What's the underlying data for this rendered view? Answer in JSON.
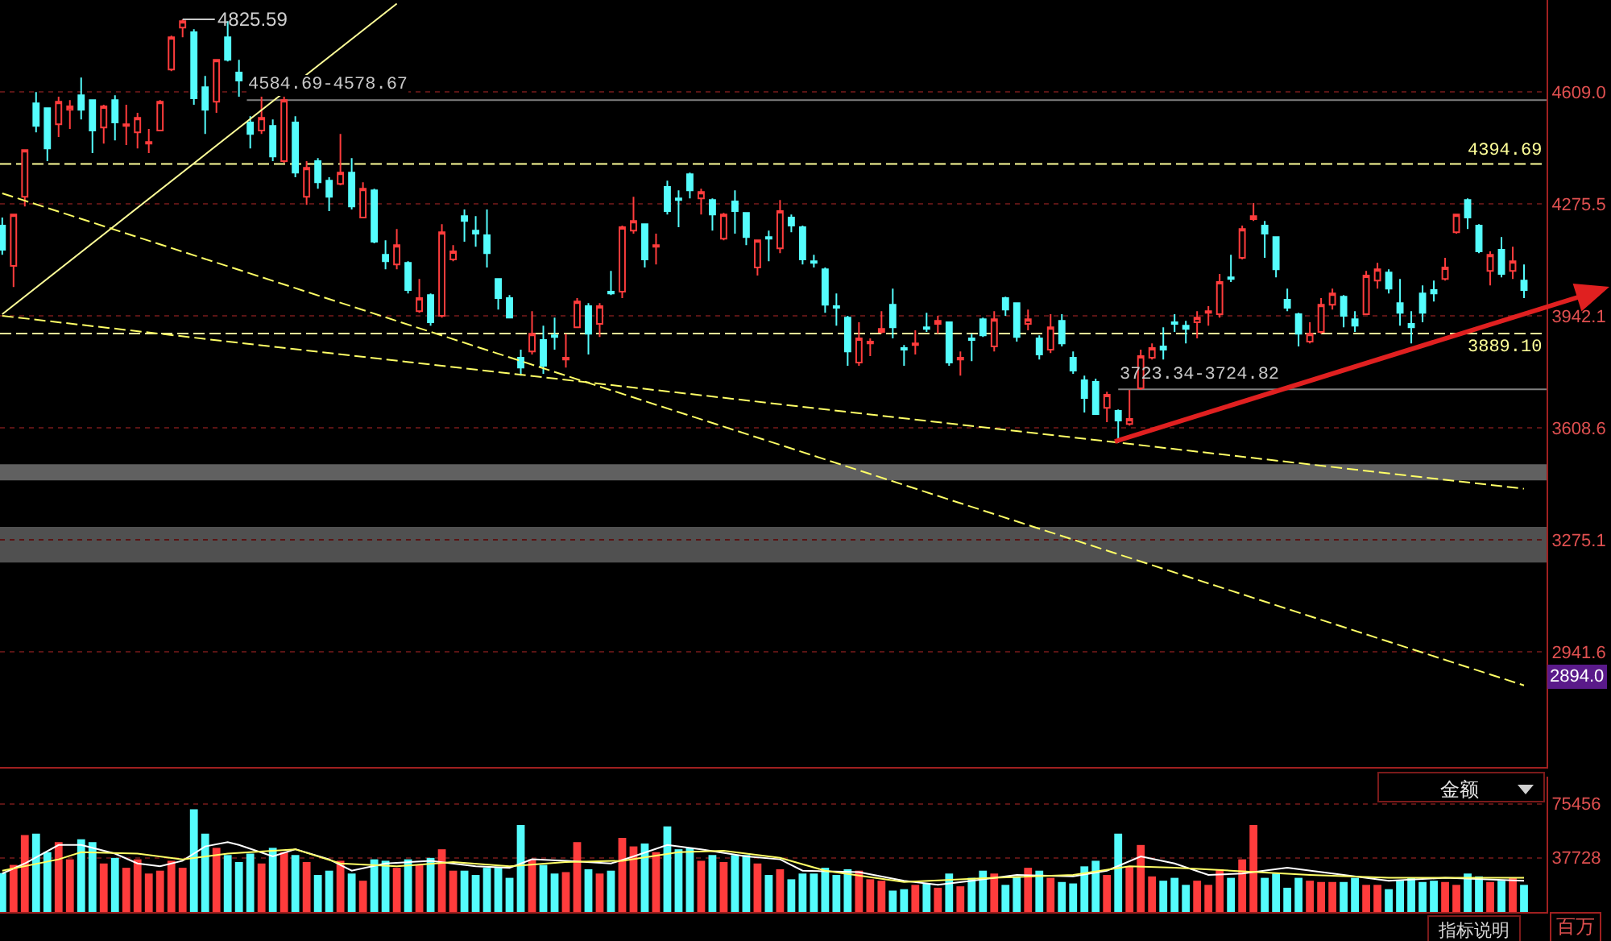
{
  "chart_data": [
    {
      "type": "candlestick",
      "categories": [
        null,
        null,
        null,
        null,
        null,
        null,
        null,
        null,
        null,
        null,
        null,
        null,
        null,
        null,
        null,
        null,
        null,
        null,
        null,
        null,
        null,
        null,
        null,
        null,
        null,
        null,
        null,
        null,
        null,
        null,
        null,
        null,
        null,
        null,
        null,
        null,
        null,
        null,
        null,
        null,
        null,
        null,
        null,
        null,
        null,
        null,
        null,
        null,
        null,
        null,
        null,
        null,
        null,
        null,
        null,
        null,
        null,
        null,
        null,
        null,
        null,
        null,
        null,
        null,
        null,
        null,
        null,
        null,
        null,
        null,
        null,
        null,
        null,
        null,
        null,
        null,
        null,
        null,
        null,
        null,
        null,
        null,
        null,
        null,
        null,
        null,
        null,
        null,
        null,
        null,
        null,
        null,
        null,
        null,
        null,
        null,
        null,
        null,
        null,
        null,
        null,
        null,
        null,
        null,
        null,
        null,
        null,
        null,
        null,
        null,
        null,
        null,
        null,
        null,
        null,
        null,
        null,
        null,
        null,
        null,
        null,
        null,
        null,
        null,
        null,
        null,
        null,
        null,
        null,
        null,
        null,
        null,
        null,
        null,
        null,
        null
      ],
      "ohlc": [
        [
          4211,
          4235,
          4124,
          4139
        ],
        [
          4091,
          4244,
          4028,
          4244
        ],
        [
          4297,
          4436,
          4268,
          4436
        ],
        [
          4575,
          4609,
          4489,
          4508
        ],
        [
          4561,
          4561,
          4403,
          4441
        ],
        [
          4513,
          4595,
          4475,
          4580
        ],
        [
          4556,
          4585,
          4499,
          4566
        ],
        [
          4599,
          4652,
          4527,
          4556
        ],
        [
          4585,
          4585,
          4427,
          4494
        ],
        [
          4503,
          4571,
          4455,
          4566
        ],
        [
          4585,
          4599,
          4465,
          4518
        ],
        [
          4508,
          4571,
          4451,
          4513
        ],
        [
          4489,
          4547,
          4441,
          4532
        ],
        [
          4455,
          4499,
          4427,
          4460
        ],
        [
          4494,
          4585,
          4494,
          4580
        ],
        [
          4676,
          4777,
          4671,
          4772
        ],
        [
          4801,
          4825.59,
          4772,
          4820
        ],
        [
          4787,
          4796,
          4571,
          4590
        ],
        [
          4623,
          4657,
          4484,
          4556
        ],
        [
          4580,
          4705,
          4547,
          4705
        ],
        [
          4772,
          4820,
          4700,
          4705
        ],
        [
          4667,
          4705,
          4595,
          4643
        ],
        [
          4518,
          4537,
          4441,
          4484
        ],
        [
          4494,
          4595,
          4484,
          4532
        ],
        [
          4508,
          4527,
          4403,
          4417
        ],
        [
          4403,
          4595,
          4398,
          4585
        ],
        [
          4518,
          4537,
          4355,
          4369
        ],
        [
          4297,
          4403,
          4273,
          4383
        ],
        [
          4403,
          4412,
          4321,
          4340
        ],
        [
          4345,
          4355,
          4254,
          4297
        ],
        [
          4335,
          4484,
          4331,
          4369
        ],
        [
          4369,
          4412,
          4259,
          4268
        ],
        [
          4235,
          4340,
          4235,
          4321
        ],
        [
          4316,
          4321,
          4158,
          4163
        ],
        [
          4124,
          4167,
          4081,
          4105
        ],
        [
          4095,
          4201,
          4081,
          4153
        ],
        [
          4100,
          4105,
          4009,
          4019
        ],
        [
          3956,
          4052,
          3951,
          3995
        ],
        [
          4004,
          4009,
          3913,
          3923
        ],
        [
          3942,
          4215,
          3937,
          4191
        ],
        [
          4110,
          4153,
          4105,
          4134
        ],
        [
          4239,
          4259,
          4163,
          4225
        ],
        [
          4196,
          4239,
          4148,
          4187
        ],
        [
          4182,
          4259,
          4086,
          4129
        ],
        [
          4052,
          4052,
          3961,
          3995
        ],
        [
          3995,
          4004,
          3937,
          3937
        ],
        [
          3817,
          3841,
          3764,
          3788
        ],
        [
          3836,
          3956,
          3827,
          3889
        ],
        [
          3870,
          3913,
          3769,
          3793
        ],
        [
          3884,
          3937,
          3841,
          3879
        ],
        [
          3812,
          3889,
          3788,
          3817
        ],
        [
          3908,
          3995,
          3908,
          3985
        ],
        [
          3971,
          3980,
          3827,
          3889
        ],
        [
          3918,
          3980,
          3879,
          3971
        ],
        [
          4014,
          4076,
          4004,
          4009
        ],
        [
          4014,
          4211,
          3995,
          4206
        ],
        [
          4196,
          4297,
          4187,
          4225
        ],
        [
          4215,
          4215,
          4086,
          4110
        ],
        [
          4148,
          4187,
          4095,
          4153
        ],
        [
          4326,
          4345,
          4244,
          4254
        ],
        [
          4292,
          4316,
          4206,
          4287
        ],
        [
          4364,
          4369,
          4292,
          4316
        ],
        [
          4292,
          4321,
          4244,
          4311
        ],
        [
          4287,
          4292,
          4196,
          4244
        ],
        [
          4172,
          4249,
          4167,
          4244
        ],
        [
          4283,
          4316,
          4187,
          4254
        ],
        [
          4249,
          4249,
          4153,
          4177
        ],
        [
          4086,
          4167,
          4062,
          4167
        ],
        [
          4177,
          4196,
          4105,
          4172
        ],
        [
          4143,
          4287,
          4129,
          4254
        ],
        [
          4235,
          4244,
          4191,
          4211
        ],
        [
          4206,
          4211,
          4095,
          4110
        ],
        [
          4105,
          4124,
          4086,
          4100
        ],
        [
          4081,
          4086,
          3951,
          3975
        ],
        [
          3971,
          4009,
          3913,
          3966
        ],
        [
          3937,
          3942,
          3793,
          3836
        ],
        [
          3803,
          3923,
          3793,
          3875
        ],
        [
          3860,
          3875,
          3822,
          3865
        ],
        [
          3894,
          3956,
          3889,
          3903
        ],
        [
          3975,
          4023,
          3875,
          3908
        ],
        [
          3846,
          3855,
          3793,
          3841
        ],
        [
          3855,
          3899,
          3827,
          3860
        ],
        [
          3908,
          3951,
          3894,
          3903
        ],
        [
          3918,
          3942,
          3889,
          3927
        ],
        [
          3923,
          3923,
          3793,
          3803
        ],
        [
          3812,
          3836,
          3764,
          3817
        ],
        [
          3875,
          3889,
          3807,
          3870
        ],
        [
          3932,
          3937,
          3879,
          3884
        ],
        [
          3851,
          3956,
          3836,
          3932
        ],
        [
          3995,
          3999,
          3942,
          3961
        ],
        [
          3980,
          3980,
          3865,
          3879
        ],
        [
          3918,
          3961,
          3899,
          3932
        ],
        [
          3875,
          3884,
          3812,
          3827
        ],
        [
          3841,
          3947,
          3831,
          3908
        ],
        [
          3927,
          3947,
          3851,
          3860
        ],
        [
          3817,
          3836,
          3769,
          3779
        ],
        [
          3750,
          3764,
          3654,
          3697
        ],
        [
          3745,
          3755,
          3649,
          3649
        ],
        [
          3668,
          3716,
          3625,
          3707
        ],
        [
          3659,
          3663,
          3563,
          3630
        ],
        [
          3620,
          3721,
          3615,
          3635
        ],
        [
          3726,
          3841,
          3721,
          3822
        ],
        [
          3817,
          3860,
          3812,
          3846
        ],
        [
          3851,
          3908,
          3812,
          3841
        ],
        [
          3923,
          3947,
          3894,
          3918
        ],
        [
          3913,
          3927,
          3860,
          3903
        ],
        [
          3923,
          3956,
          3875,
          3937
        ],
        [
          3951,
          3971,
          3913,
          3956
        ],
        [
          3947,
          4067,
          3937,
          4043
        ],
        [
          4057,
          4124,
          4043,
          4052
        ],
        [
          4115,
          4211,
          4110,
          4201
        ],
        [
          4230,
          4278,
          4225,
          4239
        ],
        [
          4211,
          4225,
          4115,
          4187
        ],
        [
          4177,
          4177,
          4057,
          4081
        ],
        [
          3990,
          4023,
          3956,
          3966
        ],
        [
          3947,
          3951,
          3851,
          3889
        ],
        [
          3865,
          3923,
          3860,
          3889
        ],
        [
          3894,
          3995,
          3889,
          3975
        ],
        [
          3975,
          4023,
          3961,
          4009
        ],
        [
          3999,
          4004,
          3908,
          3942
        ],
        [
          3932,
          3956,
          3894,
          3913
        ],
        [
          3947,
          4076,
          3947,
          4062
        ],
        [
          4047,
          4100,
          4023,
          4081
        ],
        [
          4071,
          4081,
          4009,
          4023
        ],
        [
          3980,
          4052,
          3913,
          3951
        ],
        [
          3918,
          3956,
          3860,
          3908
        ],
        [
          4009,
          4033,
          3923,
          3951
        ],
        [
          4019,
          4047,
          3985,
          4009
        ],
        [
          4052,
          4115,
          4047,
          4086
        ],
        [
          4191,
          4244,
          4187,
          4244
        ],
        [
          4287,
          4292,
          4201,
          4235
        ],
        [
          4211,
          4215,
          4129,
          4134
        ],
        [
          4076,
          4134,
          4033,
          4124
        ],
        [
          4139,
          4177,
          4057,
          4067
        ],
        [
          4076,
          4148,
          4052,
          4105
        ],
        [
          4047,
          4095,
          3995,
          4019
        ]
      ],
      "colors": [
        "#54fcfc",
        "#ff3c3c",
        "#ff3c3c",
        "#54fcfc",
        "#54fcfc",
        "#ff3c3c",
        "#ff3c3c",
        "#54fcfc",
        "#54fcfc",
        "#ff3c3c",
        "#54fcfc",
        "#ff3c3c",
        "#ff3c3c",
        "#ff3c3c",
        "#ff3c3c",
        "#ff3c3c",
        "#ff3c3c",
        "#54fcfc",
        "#54fcfc",
        "#ff3c3c",
        "#54fcfc",
        "#54fcfc",
        "#54fcfc",
        "#ff3c3c",
        "#54fcfc",
        "#ff3c3c",
        "#54fcfc",
        "#ff3c3c",
        "#54fcfc",
        "#54fcfc",
        "#ff3c3c",
        "#54fcfc",
        "#ff3c3c",
        "#54fcfc",
        "#54fcfc",
        "#ff3c3c",
        "#54fcfc",
        "#ff3c3c",
        "#54fcfc",
        "#ff3c3c",
        "#ff3c3c",
        "#54fcfc",
        "#54fcfc",
        "#54fcfc",
        "#54fcfc",
        "#54fcfc",
        "#54fcfc",
        "#ff3c3c",
        "#54fcfc",
        "#54fcfc",
        "#ff3c3c",
        "#ff3c3c",
        "#54fcfc",
        "#ff3c3c",
        "#54fcfc",
        "#ff3c3c",
        "#ff3c3c",
        "#54fcfc",
        "#ff3c3c",
        "#54fcfc",
        "#54fcfc",
        "#54fcfc",
        "#ff3c3c",
        "#54fcfc",
        "#ff3c3c",
        "#54fcfc",
        "#54fcfc",
        "#ff3c3c",
        "#54fcfc",
        "#ff3c3c",
        "#54fcfc",
        "#54fcfc",
        "#54fcfc",
        "#54fcfc",
        "#54fcfc",
        "#54fcfc",
        "#ff3c3c",
        "#ff3c3c",
        "#ff3c3c",
        "#54fcfc",
        "#54fcfc",
        "#ff3c3c",
        "#54fcfc",
        "#ff3c3c",
        "#54fcfc",
        "#ff3c3c",
        "#54fcfc",
        "#54fcfc",
        "#ff3c3c",
        "#54fcfc",
        "#54fcfc",
        "#ff3c3c",
        "#54fcfc",
        "#ff3c3c",
        "#54fcfc",
        "#54fcfc",
        "#54fcfc",
        "#54fcfc",
        "#ff3c3c",
        "#54fcfc",
        "#ff3c3c",
        "#ff3c3c",
        "#ff3c3c",
        "#54fcfc",
        "#54fcfc",
        "#54fcfc",
        "#ff3c3c",
        "#ff3c3c",
        "#ff3c3c",
        "#54fcfc",
        "#ff3c3c",
        "#ff3c3c",
        "#54fcfc",
        "#54fcfc",
        "#54fcfc",
        "#54fcfc",
        "#ff3c3c",
        "#ff3c3c",
        "#ff3c3c",
        "#54fcfc",
        "#54fcfc",
        "#ff3c3c",
        "#ff3c3c",
        "#54fcfc",
        "#54fcfc",
        "#54fcfc",
        "#54fcfc",
        "#54fcfc",
        "#ff3c3c",
        "#ff3c3c",
        "#54fcfc",
        "#54fcfc",
        "#ff3c3c",
        "#54fcfc",
        "#ff3c3c",
        "#54fcfc"
      ],
      "series": [
        {
          "type": "line",
          "values": [
            3947,
            null,
            null,
            null,
            null,
            null,
            null,
            null,
            null,
            null,
            null,
            null,
            null,
            null,
            null,
            null,
            null,
            null,
            null,
            null,
            null,
            null,
            null,
            null,
            null,
            null,
            null,
            null,
            null,
            null,
            null,
            null,
            null,
            null,
            null,
            4872,
            null,
            null,
            null,
            null,
            null,
            null,
            null,
            null,
            null,
            null,
            null,
            null,
            null,
            null,
            null,
            null,
            null,
            null,
            null,
            null,
            null,
            null,
            null,
            null,
            null,
            null,
            null,
            null,
            null,
            null,
            null,
            null,
            null,
            null,
            null,
            null,
            null,
            null,
            null,
            null,
            null,
            null,
            null,
            null,
            null,
            null,
            null,
            null,
            null,
            null,
            null,
            null,
            null,
            null,
            null,
            null,
            null,
            null,
            null,
            null,
            null,
            null,
            null,
            null,
            null,
            null,
            null,
            null,
            null,
            null,
            null,
            null,
            null,
            null,
            null,
            null,
            null,
            null,
            null,
            null,
            null,
            null,
            null,
            null,
            null,
            null,
            null,
            null,
            null,
            null,
            null,
            null,
            null,
            null,
            null,
            null,
            null,
            null,
            null,
            null
          ],
          "color": "#ffff99",
          "line_style": "solid"
        },
        {
          "type": "line",
          "values": [
            4307,
            null,
            null,
            null,
            null,
            null,
            null,
            null,
            null,
            null,
            null,
            null,
            null,
            null,
            null,
            null,
            null,
            null,
            null,
            null,
            null,
            null,
            null,
            null,
            null,
            null,
            null,
            null,
            null,
            null,
            null,
            null,
            null,
            null,
            null,
            null,
            null,
            null,
            null,
            null,
            null,
            null,
            null,
            null,
            null,
            null,
            null,
            null,
            null,
            null,
            null,
            null,
            null,
            null,
            null,
            null,
            null,
            null,
            null,
            null,
            null,
            null,
            null,
            null,
            null,
            null,
            null,
            null,
            null,
            null,
            null,
            null,
            null,
            null,
            null,
            null,
            null,
            null,
            null,
            null,
            null,
            null,
            null,
            null,
            null,
            null,
            null,
            null,
            null,
            null,
            null,
            null,
            null,
            null,
            null,
            null,
            null,
            null,
            null,
            null,
            null,
            null,
            null,
            null,
            null,
            null,
            null,
            null,
            null,
            null,
            null,
            null,
            null,
            null,
            null,
            null,
            null,
            null,
            null,
            null,
            null,
            null,
            null,
            null,
            null,
            null,
            null,
            null,
            null,
            null,
            null,
            null,
            null,
            null,
            null,
            2841
          ],
          "color": "#ffff66",
          "line_style": "dashed"
        },
        {
          "type": "line",
          "values": [
            3942,
            null,
            null,
            null,
            null,
            null,
            null,
            null,
            null,
            null,
            null,
            null,
            null,
            null,
            null,
            null,
            null,
            null,
            null,
            null,
            null,
            null,
            null,
            null,
            null,
            null,
            null,
            null,
            null,
            null,
            null,
            null,
            null,
            null,
            null,
            null,
            null,
            null,
            null,
            null,
            null,
            null,
            null,
            null,
            null,
            null,
            null,
            null,
            null,
            null,
            null,
            null,
            null,
            null,
            null,
            null,
            null,
            null,
            null,
            null,
            null,
            null,
            null,
            null,
            null,
            null,
            null,
            null,
            null,
            null,
            null,
            null,
            null,
            null,
            null,
            null,
            null,
            null,
            null,
            null,
            null,
            null,
            null,
            null,
            null,
            null,
            null,
            null,
            null,
            null,
            null,
            null,
            null,
            null,
            null,
            null,
            null,
            null,
            null,
            null,
            null,
            null,
            null,
            null,
            null,
            null,
            null,
            null,
            null,
            null,
            null,
            null,
            null,
            null,
            null,
            null,
            null,
            null,
            null,
            null,
            null,
            null,
            null,
            null,
            null,
            null,
            null,
            null,
            null,
            null,
            null,
            null,
            null,
            null,
            null,
            3427
          ],
          "color": "#ffff66",
          "line_style": "dashed"
        }
      ],
      "ylim": [
        2598,
        4883
      ],
      "yticks": [
        {
          "value": 4609.0,
          "label": "4609.0"
        },
        {
          "value": 4275.5,
          "label": "4275.5"
        },
        {
          "value": 3942.1,
          "label": "3942.1"
        },
        {
          "value": 3608.6,
          "label": "3608.6"
        },
        {
          "value": 3275.1,
          "label": "3275.1"
        },
        {
          "value": 2941.6,
          "label": "2941.6"
        }
      ],
      "grid": "y",
      "tick_labels": "y",
      "ref_lines": [
        {
          "axis": "y",
          "value": 4394.69,
          "label": "4394.69",
          "color": "#ffff99",
          "line_style": "dashed"
        },
        {
          "axis": "y",
          "value": 3889.1,
          "label": "3889.10",
          "color": "#ffff99",
          "line_style": "dashed"
        },
        {
          "axis": "y",
          "value": 4584.69,
          "label": "4584.69-4578.67",
          "color": "#808080",
          "line_style": "solid"
        },
        {
          "axis": "y",
          "value": 3723.34,
          "label": "3723.34-3724.82",
          "color": "#808080",
          "line_style": "solid"
        }
      ],
      "bands": [
        {
          "axis": "y",
          "from": 3452,
          "to": 3500,
          "color": "#606060"
        },
        {
          "axis": "y",
          "from": 3207,
          "to": 3313,
          "color": "#505050"
        }
      ],
      "annotations": [
        "4825.59",
        "2894.0"
      ]
    },
    {
      "type": "bar",
      "categories": [
        null,
        null,
        null,
        null,
        null,
        null,
        null,
        null,
        null,
        null,
        null,
        null,
        null,
        null,
        null,
        null,
        null,
        null,
        null,
        null,
        null,
        null,
        null,
        null,
        null,
        null,
        null,
        null,
        null,
        null,
        null,
        null,
        null,
        null,
        null,
        null,
        null,
        null,
        null,
        null,
        null,
        null,
        null,
        null,
        null,
        null,
        null,
        null,
        null,
        null,
        null,
        null,
        null,
        null,
        null,
        null,
        null,
        null,
        null,
        null,
        null,
        null,
        null,
        null,
        null,
        null,
        null,
        null,
        null,
        null,
        null,
        null,
        null,
        null,
        null,
        null,
        null,
        null,
        null,
        null,
        null,
        null,
        null,
        null,
        null,
        null,
        null,
        null,
        null,
        null,
        null,
        null,
        null,
        null,
        null,
        null,
        null,
        null,
        null,
        null,
        null,
        null,
        null,
        null,
        null,
        null,
        null,
        null,
        null,
        null,
        null,
        null,
        null,
        null,
        null,
        null,
        null,
        null,
        null,
        null,
        null,
        null,
        null,
        null,
        null,
        null,
        null,
        null,
        null,
        null,
        null,
        null,
        null,
        null,
        null,
        null
      ],
      "series": [
        {
          "type": "bar",
          "values": [
            27100,
            32800,
            53600,
            54600,
            41700,
            48700,
            36700,
            50600,
            48700,
            33800,
            37700,
            30800,
            36700,
            26800,
            28800,
            35700,
            30800,
            71500,
            54600,
            44700,
            39700,
            34800,
            40700,
            33800,
            44700,
            41700,
            39700,
            34800,
            25800,
            28800,
            35700,
            26800,
            21800,
            36700,
            35700,
            30800,
            36700,
            32800,
            37700,
            43700,
            28800,
            28800,
            25800,
            30800,
            30800,
            23800,
            60600,
            36700,
            32800,
            26800,
            27800,
            48700,
            29800,
            26800,
            28800,
            51600,
            45700,
            47700,
            41700,
            59600,
            43700,
            44700,
            35700,
            39700,
            34800,
            39700,
            39700,
            33800,
            25800,
            29800,
            22800,
            26800,
            26800,
            30800,
            25800,
            29800,
            28800,
            22800,
            21800,
            14900,
            15900,
            18900,
            19900,
            16900,
            26800,
            17900,
            23800,
            28800,
            26800,
            18900,
            24800,
            30800,
            28800,
            23800,
            20900,
            19900,
            31800,
            35700,
            25800,
            54600,
            31800,
            46700,
            24800,
            21800,
            23800,
            18900,
            21800,
            18900,
            29800,
            23800,
            36700,
            60600,
            23800,
            26800,
            16900,
            23800,
            21800,
            20900,
            20900,
            20900,
            23800,
            18900,
            18900,
            15900,
            21800,
            23800,
            20900,
            21800,
            20900,
            18900,
            26800,
            24800,
            20900,
            21800,
            23800,
            18900
          ],
          "colors": [
            "#54fcfc",
            "#ff3c3c",
            "#ff3c3c",
            "#54fcfc",
            "#54fcfc",
            "#ff3c3c",
            "#ff3c3c",
            "#54fcfc",
            "#54fcfc",
            "#ff3c3c",
            "#54fcfc",
            "#ff3c3c",
            "#ff3c3c",
            "#ff3c3c",
            "#ff3c3c",
            "#ff3c3c",
            "#ff3c3c",
            "#54fcfc",
            "#54fcfc",
            "#ff3c3c",
            "#54fcfc",
            "#54fcfc",
            "#54fcfc",
            "#ff3c3c",
            "#54fcfc",
            "#ff3c3c",
            "#54fcfc",
            "#ff3c3c",
            "#54fcfc",
            "#54fcfc",
            "#ff3c3c",
            "#54fcfc",
            "#ff3c3c",
            "#54fcfc",
            "#54fcfc",
            "#ff3c3c",
            "#54fcfc",
            "#ff3c3c",
            "#54fcfc",
            "#ff3c3c",
            "#ff3c3c",
            "#54fcfc",
            "#54fcfc",
            "#54fcfc",
            "#54fcfc",
            "#54fcfc",
            "#54fcfc",
            "#ff3c3c",
            "#54fcfc",
            "#54fcfc",
            "#ff3c3c",
            "#ff3c3c",
            "#54fcfc",
            "#ff3c3c",
            "#54fcfc",
            "#ff3c3c",
            "#ff3c3c",
            "#54fcfc",
            "#ff3c3c",
            "#54fcfc",
            "#54fcfc",
            "#54fcfc",
            "#ff3c3c",
            "#54fcfc",
            "#ff3c3c",
            "#54fcfc",
            "#54fcfc",
            "#ff3c3c",
            "#54fcfc",
            "#ff3c3c",
            "#54fcfc",
            "#54fcfc",
            "#54fcfc",
            "#54fcfc",
            "#54fcfc",
            "#54fcfc",
            "#ff3c3c",
            "#ff3c3c",
            "#ff3c3c",
            "#54fcfc",
            "#54fcfc",
            "#ff3c3c",
            "#54fcfc",
            "#ff3c3c",
            "#54fcfc",
            "#ff3c3c",
            "#54fcfc",
            "#54fcfc",
            "#ff3c3c",
            "#54fcfc",
            "#54fcfc",
            "#ff3c3c",
            "#54fcfc",
            "#ff3c3c",
            "#54fcfc",
            "#54fcfc",
            "#54fcfc",
            "#54fcfc",
            "#ff3c3c",
            "#54fcfc",
            "#ff3c3c",
            "#ff3c3c",
            "#ff3c3c",
            "#54fcfc",
            "#54fcfc",
            "#54fcfc",
            "#ff3c3c",
            "#ff3c3c",
            "#ff3c3c",
            "#54fcfc",
            "#ff3c3c",
            "#ff3c3c",
            "#54fcfc",
            "#54fcfc",
            "#54fcfc",
            "#54fcfc",
            "#ff3c3c",
            "#ff3c3c",
            "#ff3c3c",
            "#54fcfc",
            "#54fcfc",
            "#ff3c3c",
            "#ff3c3c",
            "#54fcfc",
            "#54fcfc",
            "#54fcfc",
            "#54fcfc",
            "#54fcfc",
            "#ff3c3c",
            "#ff3c3c",
            "#54fcfc",
            "#54fcfc",
            "#ff3c3c",
            "#54fcfc",
            "#ff3c3c",
            "#54fcfc"
          ]
        },
        {
          "type": "line",
          "values": [
            26800,
            null,
            33800,
            null,
            null,
            46700,
            null,
            46700,
            null,
            null,
            40700,
            null,
            33800,
            null,
            31800,
            null,
            35700,
            null,
            45700,
            null,
            48700,
            46700,
            null,
            null,
            38700,
            null,
            43700,
            null,
            null,
            36700,
            null,
            28800,
            null,
            null,
            33800,
            null,
            null,
            null,
            35700,
            null,
            null,
            null,
            31800,
            null,
            null,
            30800,
            null,
            36700,
            null,
            null,
            35700,
            null,
            null,
            null,
            33800,
            null,
            38700,
            null,
            null,
            46700,
            null,
            null,
            43700,
            null,
            null,
            null,
            38700,
            null,
            null,
            36700,
            null,
            28800,
            null,
            null,
            null,
            null,
            27800,
            null,
            null,
            null,
            21800,
            null,
            null,
            18900,
            null,
            null,
            21800,
            null,
            null,
            null,
            25800,
            null,
            null,
            null,
            null,
            24800,
            null,
            null,
            28800,
            null,
            null,
            38700,
            null,
            null,
            33800,
            null,
            null,
            25800,
            null,
            null,
            26800,
            null,
            null,
            null,
            30800,
            null,
            null,
            null,
            null,
            25800,
            null,
            null,
            null,
            21800,
            null,
            null,
            null,
            null,
            23800,
            null,
            null,
            null,
            null,
            null,
            null,
            21800
          ],
          "color": "#ffffff",
          "line_style": "solid"
        },
        {
          "type": "line",
          "values": [
            28800,
            null,
            null,
            null,
            null,
            36700,
            null,
            41700,
            null,
            null,
            null,
            null,
            40700,
            null,
            null,
            null,
            36700,
            null,
            null,
            null,
            40700,
            null,
            null,
            null,
            null,
            null,
            43700,
            null,
            null,
            null,
            33800,
            null,
            null,
            null,
            null,
            31800,
            null,
            null,
            null,
            null,
            34800,
            null,
            null,
            null,
            null,
            31800,
            null,
            null,
            null,
            null,
            34800,
            null,
            null,
            null,
            null,
            35700,
            null,
            null,
            null,
            null,
            41700,
            null,
            null,
            null,
            42700,
            null,
            null,
            null,
            null,
            37700,
            null,
            null,
            null,
            28800,
            null,
            null,
            null,
            null,
            null,
            null,
            20900,
            null,
            null,
            null,
            null,
            null,
            null,
            null,
            23800,
            null,
            null,
            null,
            null,
            null,
            null,
            25800,
            null,
            null,
            null,
            null,
            31800,
            null,
            null,
            null,
            30800,
            null,
            null,
            null,
            null,
            28800,
            null,
            null,
            null,
            null,
            null,
            null,
            25800,
            null,
            null,
            null,
            null,
            null,
            null,
            23800,
            null,
            null,
            null,
            null,
            null,
            null,
            null,
            null,
            null,
            null,
            null,
            23800
          ],
          "color": "#ffff66",
          "line_style": "solid"
        }
      ],
      "ylim": [
        0,
        94300
      ],
      "yticks": [
        75456,
        37728
      ],
      "grid": "y",
      "tick_labels": "y",
      "ylabel": "百万",
      "annotations": [
        "金额",
        "指标说明"
      ]
    }
  ]
}
